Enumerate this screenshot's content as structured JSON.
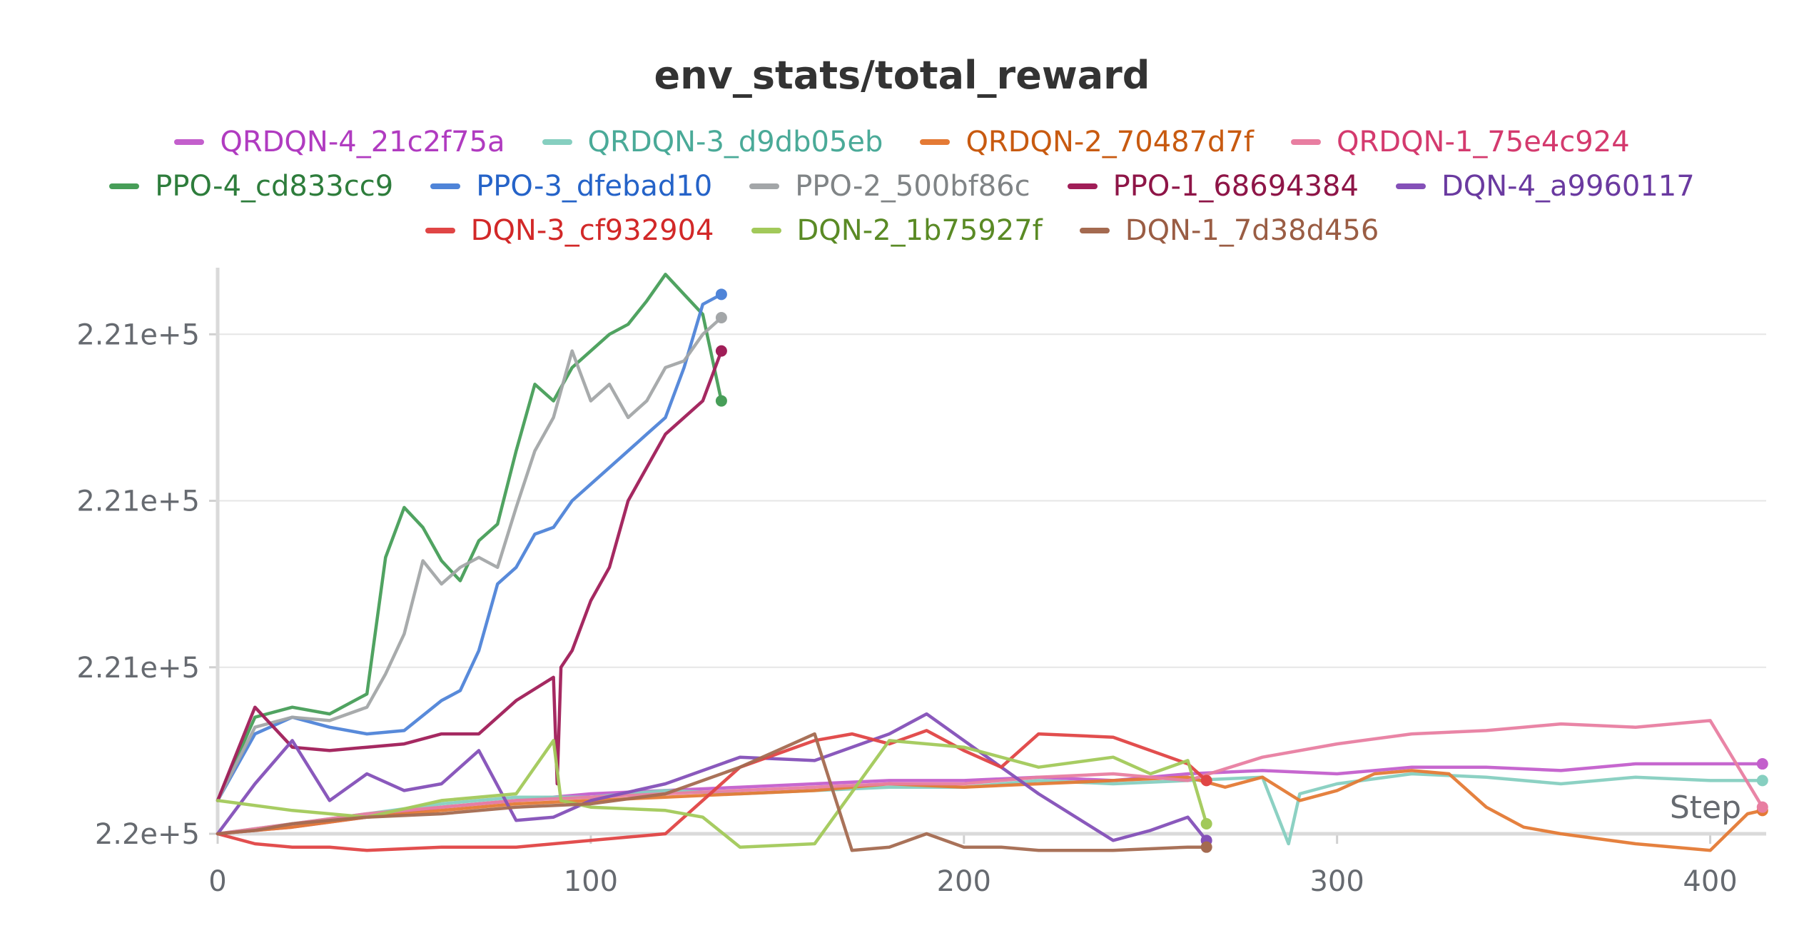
{
  "chart_data": {
    "type": "line",
    "title": "env_stats/total_reward",
    "xlabel": "Step",
    "ylabel": "",
    "xlim": [
      0,
      415
    ],
    "ylim": [
      220000,
      221700
    ],
    "x_ticks": [
      0,
      100,
      200,
      300,
      400
    ],
    "y_ticks": [
      {
        "value": 220000,
        "label": "2.2e+5"
      },
      {
        "value": 220500,
        "label": "2.21e+5"
      },
      {
        "value": 221000,
        "label": "2.21e+5"
      },
      {
        "value": 221500,
        "label": "2.21e+5"
      }
    ],
    "grid": true,
    "legend_position": "top",
    "legend_rows": [
      [
        0,
        1,
        2,
        3
      ],
      [
        4,
        5,
        6,
        7,
        8
      ],
      [
        9,
        10,
        11
      ]
    ],
    "series": [
      {
        "name": "QRDQN-4_21c2f75a",
        "color": "#c35fcc",
        "label_color": "#b03bc0",
        "x": [
          0,
          20,
          40,
          60,
          80,
          100,
          120,
          140,
          160,
          180,
          200,
          220,
          240,
          260,
          280,
          300,
          320,
          340,
          360,
          380,
          400,
          414
        ],
        "y": [
          220000,
          220020,
          220050,
          220080,
          220100,
          220120,
          220130,
          220140,
          220150,
          220160,
          220160,
          220170,
          220160,
          220180,
          220190,
          220180,
          220200,
          220200,
          220190,
          220210,
          220210,
          220210
        ]
      },
      {
        "name": "QRDQN-3_d9db05eb",
        "color": "#86cfc0",
        "label_color": "#4aaa98",
        "x": [
          0,
          20,
          40,
          60,
          80,
          100,
          120,
          140,
          160,
          180,
          200,
          220,
          240,
          260,
          280,
          287,
          290,
          300,
          320,
          340,
          360,
          380,
          400,
          414
        ],
        "y": [
          220000,
          220030,
          220060,
          220090,
          220110,
          220110,
          220130,
          220120,
          220130,
          220140,
          220140,
          220160,
          220150,
          220160,
          220170,
          219970,
          220120,
          220150,
          220180,
          220170,
          220150,
          220170,
          220160,
          220160
        ]
      },
      {
        "name": "QRDQN-2_70487d7f",
        "color": "#e47a35",
        "label_color": "#c85a10",
        "x": [
          0,
          20,
          40,
          60,
          80,
          100,
          120,
          140,
          160,
          180,
          200,
          220,
          240,
          260,
          270,
          280,
          290,
          300,
          310,
          320,
          330,
          340,
          350,
          360,
          380,
          400,
          410,
          414
        ],
        "y": [
          220000,
          220020,
          220050,
          220070,
          220090,
          220100,
          220110,
          220120,
          220130,
          220150,
          220140,
          220150,
          220160,
          220170,
          220140,
          220170,
          220100,
          220130,
          220180,
          220190,
          220180,
          220080,
          220020,
          220000,
          219970,
          219950,
          220060,
          220070
        ]
      },
      {
        "name": "QRDQN-1_75e4c924",
        "color": "#e87ea1",
        "label_color": "#d43a6e",
        "x": [
          0,
          20,
          40,
          60,
          80,
          100,
          120,
          140,
          160,
          180,
          200,
          220,
          240,
          260,
          280,
          300,
          320,
          340,
          360,
          380,
          400,
          414
        ],
        "y": [
          220000,
          220030,
          220060,
          220080,
          220100,
          220110,
          220120,
          220130,
          220140,
          220150,
          220150,
          220170,
          220180,
          220160,
          220230,
          220270,
          220300,
          220310,
          220330,
          220320,
          220340,
          220080
        ]
      },
      {
        "name": "PPO-4_cd833cc9",
        "color": "#479e58",
        "label_color": "#2e7d3c",
        "x": [
          0,
          10,
          20,
          30,
          40,
          45,
          50,
          55,
          60,
          65,
          70,
          75,
          80,
          85,
          90,
          95,
          100,
          105,
          110,
          115,
          120,
          125,
          130,
          135
        ],
        "y": [
          220100,
          220350,
          220380,
          220360,
          220420,
          220830,
          220980,
          220920,
          220820,
          220760,
          220880,
          220930,
          221150,
          221350,
          221300,
          221400,
          221450,
          221500,
          221530,
          221600,
          221680,
          221620,
          221560,
          221300
        ]
      },
      {
        "name": "PPO-3_dfebad10",
        "color": "#4f84d8",
        "label_color": "#2563c8",
        "x": [
          0,
          10,
          20,
          30,
          40,
          50,
          60,
          65,
          70,
          75,
          80,
          85,
          90,
          95,
          100,
          105,
          110,
          115,
          120,
          125,
          130,
          135
        ],
        "y": [
          220100,
          220300,
          220350,
          220320,
          220300,
          220310,
          220400,
          220430,
          220550,
          220750,
          220800,
          220900,
          220920,
          221000,
          221050,
          221100,
          221150,
          221200,
          221250,
          221400,
          221590,
          221620
        ]
      },
      {
        "name": "PPO-2_500bf86c",
        "color": "#a3a6a8",
        "label_color": "#808486",
        "x": [
          0,
          10,
          20,
          30,
          40,
          45,
          50,
          55,
          60,
          65,
          70,
          75,
          80,
          85,
          90,
          95,
          100,
          105,
          110,
          115,
          120,
          125,
          130,
          135
        ],
        "y": [
          220100,
          220320,
          220350,
          220340,
          220380,
          220480,
          220600,
          220820,
          220750,
          220800,
          220830,
          220800,
          220980,
          221150,
          221250,
          221450,
          221300,
          221350,
          221250,
          221300,
          221400,
          221420,
          221500,
          221550
        ]
      },
      {
        "name": "PPO-1_68694384",
        "color": "#a01e58",
        "label_color": "#8e1547",
        "x": [
          0,
          10,
          20,
          30,
          40,
          50,
          60,
          70,
          80,
          90,
          91,
          92,
          95,
          100,
          105,
          110,
          115,
          120,
          125,
          130,
          135
        ],
        "y": [
          220100,
          220380,
          220260,
          220250,
          220260,
          220270,
          220300,
          220300,
          220400,
          220470,
          220150,
          220500,
          220550,
          220700,
          220800,
          221000,
          221100,
          221200,
          221250,
          221300,
          221450
        ]
      },
      {
        "name": "DQN-4_a9960117",
        "color": "#8450b8",
        "label_color": "#6a3aa0",
        "x": [
          0,
          10,
          20,
          30,
          40,
          50,
          60,
          70,
          80,
          90,
          100,
          120,
          140,
          160,
          180,
          190,
          200,
          220,
          240,
          250,
          260,
          265
        ],
        "y": [
          220000,
          220150,
          220280,
          220100,
          220180,
          220130,
          220150,
          220250,
          220040,
          220050,
          220100,
          220150,
          220230,
          220220,
          220300,
          220360,
          220280,
          220120,
          219980,
          220010,
          220050,
          219980
        ]
      },
      {
        "name": "DQN-3_cf932904",
        "color": "#e04545",
        "label_color": "#d22828",
        "x": [
          0,
          10,
          20,
          30,
          40,
          60,
          80,
          100,
          120,
          140,
          160,
          170,
          180,
          190,
          200,
          210,
          220,
          240,
          260,
          265
        ],
        "y": [
          220000,
          219970,
          219960,
          219960,
          219950,
          219960,
          219960,
          219980,
          220000,
          220200,
          220280,
          220300,
          220270,
          220310,
          220250,
          220200,
          220300,
          220290,
          220210,
          220160
        ]
      },
      {
        "name": "DQN-2_1b75927f",
        "color": "#a2c95a",
        "label_color": "#5a8a25",
        "x": [
          0,
          20,
          40,
          60,
          80,
          90,
          92,
          100,
          120,
          130,
          140,
          160,
          180,
          200,
          220,
          240,
          250,
          260,
          265
        ],
        "y": [
          220100,
          220070,
          220050,
          220100,
          220120,
          220280,
          220100,
          220080,
          220070,
          220050,
          219960,
          219970,
          220280,
          220260,
          220200,
          220230,
          220180,
          220220,
          220030
        ]
      },
      {
        "name": "DQN-1_7d38d456",
        "color": "#a46a50",
        "label_color": "#9a5d44",
        "x": [
          0,
          10,
          20,
          30,
          40,
          60,
          80,
          100,
          120,
          140,
          150,
          160,
          170,
          180,
          190,
          200,
          210,
          220,
          240,
          260,
          265
        ],
        "y": [
          220000,
          220010,
          220030,
          220040,
          220050,
          220060,
          220080,
          220090,
          220120,
          220200,
          220250,
          220300,
          219950,
          219960,
          220000,
          219960,
          219960,
          219950,
          219950,
          219960,
          219960
        ]
      }
    ]
  }
}
